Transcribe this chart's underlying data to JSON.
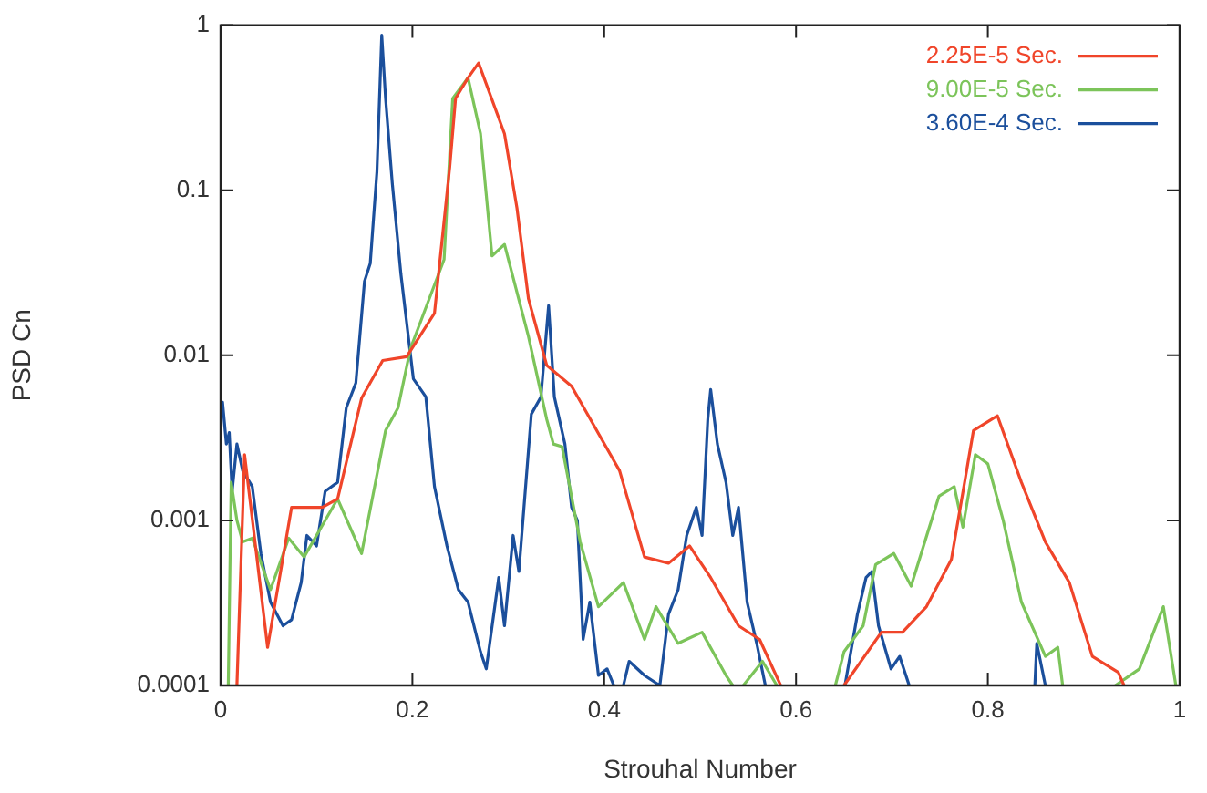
{
  "chart_data": {
    "type": "line",
    "xlabel": "Strouhal Number",
    "ylabel": "PSD Cn",
    "log": "y",
    "grid": false,
    "legend": "top right",
    "marker": "none",
    "line_style": "solid",
    "xlim": [
      0,
      1
    ],
    "xticks": [
      0,
      0.2,
      0.4,
      0.6,
      0.8,
      1
    ],
    "ylim": [
      0.0001,
      1
    ],
    "yticks": [
      0.0001,
      0.001,
      0.01,
      0.1,
      1
    ],
    "series": [
      {
        "name": "2.25E-5 Sec.",
        "color": "#f0452a",
        "x": [
          0.017,
          0.025,
          0.049,
          0.074,
          0.106,
          0.122,
          0.147,
          0.169,
          0.194,
          0.223,
          0.239,
          0.245,
          0.258,
          0.269,
          0.296,
          0.309,
          0.321,
          0.34,
          0.366,
          0.416,
          0.442,
          0.467,
          0.489,
          0.511,
          0.54,
          0.562,
          0.584,
          0.61,
          0.65,
          0.689,
          0.711,
          0.736,
          0.762,
          0.785,
          0.81,
          0.835,
          0.86,
          0.885,
          0.909,
          0.936,
          0.942
        ],
        "values": [
          0.0001,
          0.0025,
          0.00017,
          0.0012,
          0.0012,
          0.00135,
          0.0055,
          0.0093,
          0.0098,
          0.018,
          0.14,
          0.36,
          0.48,
          0.59,
          0.22,
          0.078,
          0.022,
          0.0087,
          0.0065,
          0.002,
          0.0006,
          0.00055,
          0.0007,
          0.00045,
          0.00023,
          0.00019,
          0.0001,
          null,
          0.0001,
          0.00021,
          0.00021,
          0.0003,
          0.00058,
          0.0035,
          0.0043,
          0.0017,
          0.00074,
          0.00042,
          0.00015,
          0.00012,
          0.0001
        ]
      },
      {
        "name": "9.00E-5 Sec.",
        "color": "#7cc45a",
        "x": [
          0.008,
          0.011,
          0.017,
          0.023,
          0.033,
          0.052,
          0.071,
          0.087,
          0.122,
          0.147,
          0.172,
          0.185,
          0.198,
          0.233,
          0.242,
          0.258,
          0.271,
          0.283,
          0.296,
          0.321,
          0.34,
          0.347,
          0.356,
          0.375,
          0.394,
          0.42,
          0.442,
          0.454,
          0.477,
          0.502,
          0.527,
          0.534,
          0.54,
          0.545,
          0.565,
          0.58,
          0.61,
          0.641,
          0.65,
          0.67,
          0.683,
          0.702,
          0.72,
          0.749,
          0.765,
          0.774,
          0.787,
          0.8,
          0.816,
          0.835,
          0.86,
          0.873,
          0.878,
          0.9,
          0.933,
          0.958,
          0.983,
          0.996
        ],
        "values": [
          0.0001,
          0.0017,
          0.001,
          0.00074,
          0.00078,
          0.00038,
          0.00078,
          0.0006,
          0.00135,
          0.00063,
          0.0035,
          0.0048,
          0.011,
          0.038,
          0.36,
          0.48,
          0.22,
          0.04,
          0.047,
          0.013,
          0.0041,
          0.0029,
          0.0028,
          0.00074,
          0.0003,
          0.00042,
          0.00019,
          0.0003,
          0.00018,
          0.00021,
          0.000115,
          0.0001,
          null,
          0.0001,
          0.00014,
          0.0001,
          null,
          0.0001,
          0.00016,
          0.00023,
          0.00054,
          0.00063,
          0.0004,
          0.0014,
          0.0016,
          0.00091,
          0.0025,
          0.0022,
          0.001,
          0.00032,
          0.00015,
          0.00017,
          0.0001,
          null,
          0.0001,
          0.000126,
          0.0003,
          0.0001
        ]
      },
      {
        "name": "3.60E-4 Sec.",
        "color": "#1b4f9c",
        "x": [
          0.002,
          0.006,
          0.009,
          0.012,
          0.017,
          0.023,
          0.033,
          0.042,
          0.052,
          0.065,
          0.074,
          0.084,
          0.09,
          0.1,
          0.109,
          0.122,
          0.131,
          0.141,
          0.15,
          0.156,
          0.163,
          0.168,
          0.172,
          0.179,
          0.188,
          0.201,
          0.214,
          0.223,
          0.236,
          0.248,
          0.258,
          0.271,
          0.277,
          0.29,
          0.296,
          0.305,
          0.311,
          0.324,
          0.334,
          0.342,
          0.348,
          0.359,
          0.366,
          0.372,
          0.378,
          0.385,
          0.394,
          0.403,
          0.41,
          0.415,
          0.42,
          0.426,
          0.442,
          0.458,
          0.467,
          0.477,
          0.486,
          0.496,
          0.502,
          0.508,
          0.511,
          0.518,
          0.527,
          0.534,
          0.54,
          0.549,
          0.559,
          0.568,
          0.6,
          0.651,
          0.664,
          0.673,
          0.679,
          0.686,
          0.699,
          0.708,
          0.718,
          0.78,
          0.849,
          0.851,
          0.86
        ],
        "values": [
          0.0052,
          0.0029,
          0.0034,
          0.0015,
          0.0029,
          0.002,
          0.0016,
          0.00063,
          0.00032,
          0.00023,
          0.00025,
          0.00042,
          0.00081,
          0.0007,
          0.0015,
          0.0017,
          0.0048,
          0.0068,
          0.028,
          0.036,
          0.13,
          0.87,
          0.36,
          0.11,
          0.031,
          0.0072,
          0.0056,
          0.0016,
          0.0007,
          0.00038,
          0.00032,
          0.00016,
          0.000126,
          0.00045,
          0.00023,
          0.00081,
          0.00049,
          0.0044,
          0.0056,
          0.02,
          0.0056,
          0.0029,
          0.0012,
          0.001,
          0.00019,
          0.00032,
          0.000115,
          0.000126,
          0.0001,
          null,
          0.0001,
          0.00014,
          0.000115,
          0.0001,
          0.00027,
          0.00038,
          0.00081,
          0.0012,
          0.00081,
          0.0041,
          0.0062,
          0.0029,
          0.0017,
          0.00081,
          0.0012,
          0.00032,
          0.00018,
          0.0001,
          null,
          0.0001,
          0.00027,
          0.00045,
          0.00049,
          0.00023,
          0.000126,
          0.00015,
          0.0001,
          null,
          0.0001,
          0.00018,
          0.0001
        ]
      }
    ]
  }
}
